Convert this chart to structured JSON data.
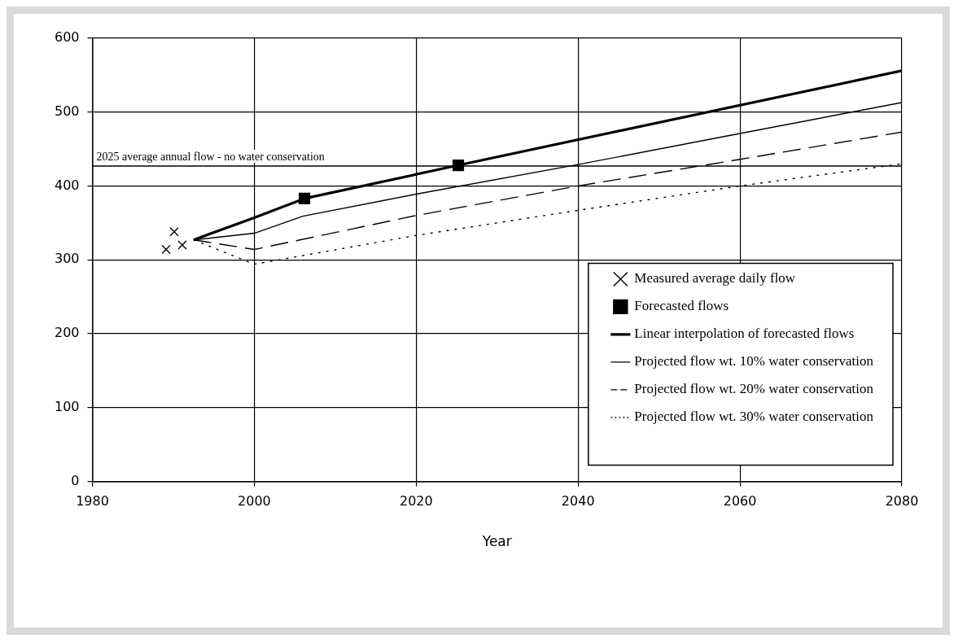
{
  "chart_data": {
    "type": "line",
    "xlabel": "Year",
    "xlim": [
      1980,
      2080
    ],
    "xticks": [
      1980,
      2000,
      2020,
      2040,
      2060,
      2080
    ],
    "ylim": [
      0,
      600
    ],
    "yticks": [
      0,
      100,
      200,
      300,
      400,
      500,
      600
    ],
    "grid": true,
    "legend": "bottom right",
    "ref_lines": [
      {
        "axis": "y",
        "value": 427,
        "label": "2025 average annual flow - no water conservation",
        "color": "#000000"
      }
    ],
    "series": [
      {
        "name": "Measured average daily flow",
        "type": "scatter",
        "marker": "cross",
        "color": "#000000",
        "x": [
          1989.1,
          1990.1,
          1991.1
        ],
        "values": [
          314,
          338,
          320
        ]
      },
      {
        "name": "Forecasted flows",
        "type": "scatter",
        "marker": "square",
        "color": "#000000",
        "x": [
          2006.2,
          2025.2
        ],
        "values": [
          383,
          428
        ]
      },
      {
        "name": "Linear interpolation of forecasted flows",
        "type": "line",
        "marker": "none",
        "line_style": "solid",
        "color": "#000000",
        "x": [
          1992.5,
          2000,
          2006.2,
          2025.2,
          2080
        ],
        "values": [
          327,
          357,
          383,
          428,
          556
        ]
      },
      {
        "name": "Projected flow wt. 10% water conservation",
        "type": "line",
        "marker": "none",
        "line_style": "solid",
        "color": "#000000",
        "x": [
          1992.5,
          2000,
          2006,
          2020,
          2040,
          2060,
          2080
        ],
        "values": [
          327,
          336,
          359,
          389,
          429,
          471,
          513
        ]
      },
      {
        "name": "Projected flow wt. 20% water conservation",
        "type": "line",
        "marker": "none",
        "line_style": "dashed",
        "color": "#000000",
        "x": [
          1992.5,
          2000,
          2020,
          2040,
          2060,
          2080
        ],
        "values": [
          327,
          314,
          360,
          400,
          436,
          473
        ]
      },
      {
        "name": "Projected flow wt. 30% water conservation",
        "type": "line",
        "marker": "none",
        "line_style": "dotted",
        "color": "#000000",
        "x": [
          1992.5,
          2000,
          2020,
          2040,
          2060,
          2080
        ],
        "values": [
          327,
          294,
          333,
          367,
          400,
          430
        ]
      }
    ]
  }
}
